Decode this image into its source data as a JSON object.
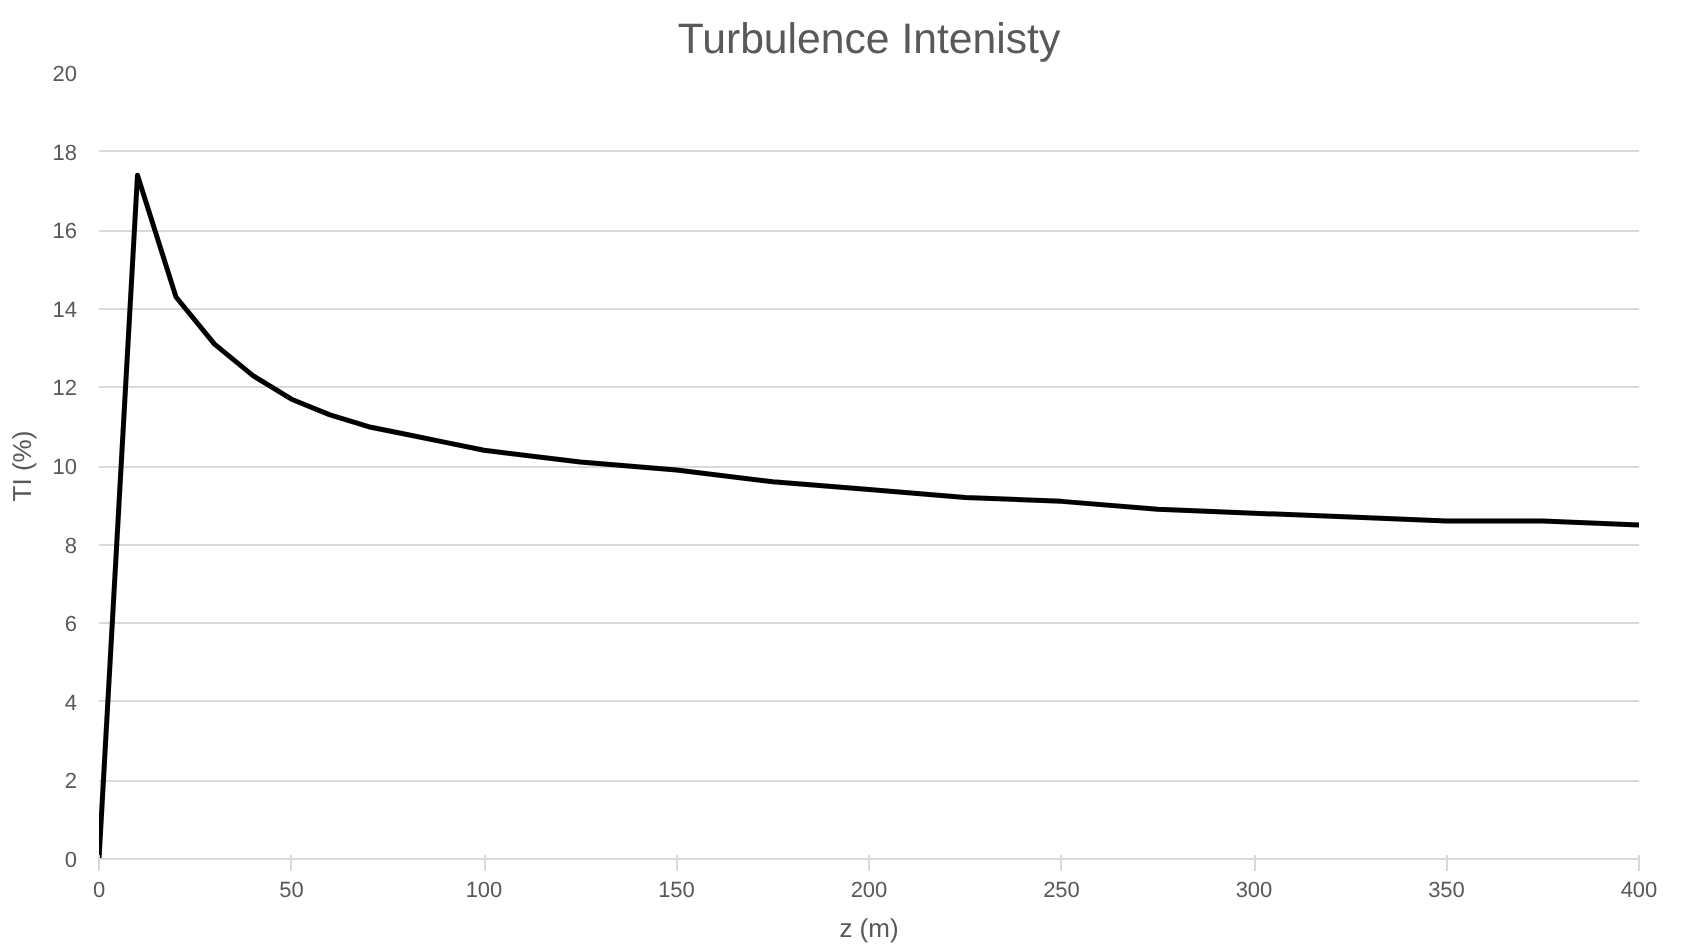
{
  "chart_data": {
    "type": "line",
    "title": "Turbulence Intenisty",
    "xlabel": "z (m)",
    "ylabel": "TI (%)",
    "x": [
      0,
      10,
      20,
      30,
      40,
      50,
      60,
      70,
      80,
      90,
      100,
      125,
      150,
      175,
      200,
      225,
      250,
      275,
      300,
      325,
      350,
      375,
      400
    ],
    "series": [
      {
        "color": "#000000",
        "values": [
          0,
          17.4,
          14.3,
          13.1,
          12.3,
          11.7,
          11.3,
          11.0,
          10.8,
          10.6,
          10.4,
          10.1,
          9.9,
          9.6,
          9.4,
          9.2,
          9.1,
          8.9,
          8.8,
          8.7,
          8.6,
          8.6,
          8.5
        ]
      }
    ],
    "xlim": [
      0,
      400
    ],
    "ylim": [
      0,
      20
    ],
    "xticks": [
      0,
      50,
      100,
      150,
      200,
      250,
      300,
      350,
      400
    ],
    "yticks": [
      0,
      2,
      4,
      6,
      8,
      10,
      12,
      14,
      16,
      18,
      20
    ],
    "grid": "y",
    "marker": "none",
    "line_style": "solid"
  }
}
